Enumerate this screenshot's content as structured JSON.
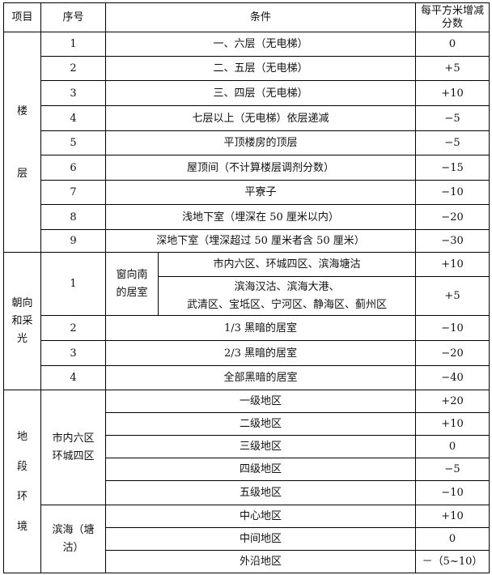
{
  "header": {
    "item": "项目",
    "seq": "序号",
    "condition": "条件",
    "score": "每平方米增减分数"
  },
  "floors": {
    "label_chars": [
      "楼",
      "层"
    ],
    "rows": [
      {
        "seq": "1",
        "condition": "一、六层（无电梯）",
        "score": "0"
      },
      {
        "seq": "2",
        "condition": "二、五层（无电梯）",
        "score": "+5"
      },
      {
        "seq": "3",
        "condition": "三、四层（无电梯）",
        "score": "+10"
      },
      {
        "seq": "4",
        "condition": "七层以上（无电梯）依层递减",
        "score": "−5"
      },
      {
        "seq": "5",
        "condition": "平顶楼房的顶层",
        "score": "−5"
      },
      {
        "seq": "6",
        "condition": "屋顶间（不计算楼层调剂分数）",
        "score": "−15"
      },
      {
        "seq": "7",
        "condition": "平寮子",
        "score": "−10"
      },
      {
        "seq": "8",
        "condition": "浅地下室（埋深在 50 厘米以内）",
        "score": "−20"
      },
      {
        "seq": "9",
        "condition": "深地下室（埋深超过 50 厘米者含 50 厘米）",
        "score": "−30"
      }
    ]
  },
  "orientation": {
    "label": "朝向和采光",
    "row1": {
      "seq": "1",
      "sub_label": "窗向南的居室",
      "items": [
        {
          "condition": "市内六区、环城四区、滨海塘沽",
          "score": "+10"
        },
        {
          "condition_line1": "滨海汉沽、滨海大港、",
          "condition_line2": "武清区、宝坻区、宁河区、静海区、蓟州区",
          "score": "+5"
        }
      ]
    },
    "rows": [
      {
        "seq": "2",
        "condition": "1/3 黑暗的居室",
        "score": "−10"
      },
      {
        "seq": "3",
        "condition": "2/3 黑暗的居室",
        "score": "−20"
      },
      {
        "seq": "4",
        "condition": "全部黑暗的居室",
        "score": "−40"
      }
    ]
  },
  "location": {
    "label_chars": [
      "地",
      "段",
      "环",
      "境"
    ],
    "groups": [
      {
        "name": "市内六区环城四区",
        "rows": [
          {
            "condition": "一级地区",
            "score": "+20"
          },
          {
            "condition": "二级地区",
            "score": "+10"
          },
          {
            "condition": "三级地区",
            "score": "0"
          },
          {
            "condition": "四级地区",
            "score": "−5"
          },
          {
            "condition": "五级地区",
            "score": "−10"
          }
        ]
      },
      {
        "name": "滨海（塘沽）",
        "rows": [
          {
            "condition": "中心地区",
            "score": "+10"
          },
          {
            "condition": "中间地区",
            "score": "0"
          },
          {
            "condition": "外沿地区",
            "score": "－（5~10）"
          }
        ]
      }
    ]
  }
}
